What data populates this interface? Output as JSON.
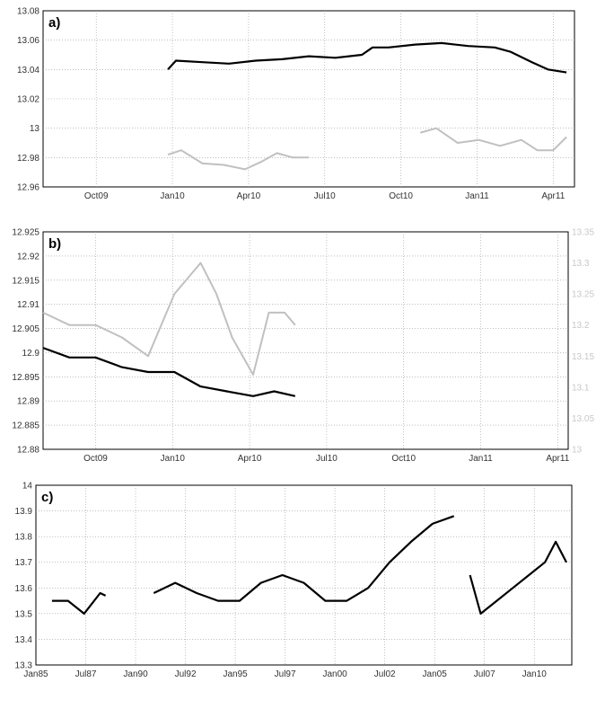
{
  "chart_data": [
    {
      "panel_label": "a)",
      "type": "line",
      "ylim": [
        12.96,
        13.08
      ],
      "y_ticks": [
        "12.96",
        "12.98",
        "13",
        "13.02",
        "13.04",
        "13.06",
        "13.08"
      ],
      "x_ticks": [
        "Oct09",
        "Jan10",
        "Apr10",
        "Jul10",
        "Oct10",
        "Jan11",
        "Apr11"
      ],
      "grid": true,
      "series": [
        {
          "color": "#000000",
          "points": [
            [
              0.235,
              13.04
            ],
            [
              0.25,
              13.046
            ],
            [
              0.3,
              13.045
            ],
            [
              0.35,
              13.044
            ],
            [
              0.4,
              13.046
            ],
            [
              0.45,
              13.047
            ],
            [
              0.5,
              13.049
            ],
            [
              0.55,
              13.048
            ],
            [
              0.6,
              13.05
            ],
            [
              0.62,
              13.055
            ],
            [
              0.65,
              13.055
            ],
            [
              0.7,
              13.057
            ],
            [
              0.75,
              13.058
            ],
            [
              0.8,
              13.056
            ],
            [
              0.85,
              13.055
            ],
            [
              0.88,
              13.052
            ],
            [
              0.92,
              13.045
            ],
            [
              0.95,
              13.04
            ],
            [
              0.985,
              13.038
            ]
          ]
        },
        {
          "color": "#c0c0c0",
          "points": [
            [
              0.235,
              12.982
            ],
            [
              0.26,
              12.985
            ],
            [
              0.3,
              12.976
            ],
            [
              0.34,
              12.975
            ],
            [
              0.38,
              12.972
            ],
            [
              0.41,
              12.977
            ],
            [
              0.44,
              12.983
            ],
            [
              0.47,
              12.98
            ],
            [
              0.5,
              12.98
            ]
          ]
        },
        {
          "color": "#c0c0c0",
          "points": [
            [
              0.71,
              12.997
            ],
            [
              0.74,
              13.0
            ],
            [
              0.78,
              12.99
            ],
            [
              0.82,
              12.992
            ],
            [
              0.86,
              12.988
            ],
            [
              0.9,
              12.992
            ],
            [
              0.93,
              12.985
            ],
            [
              0.96,
              12.985
            ],
            [
              0.985,
              12.994
            ]
          ]
        }
      ]
    },
    {
      "panel_label": "b)",
      "type": "line",
      "ylim": [
        12.88,
        12.925
      ],
      "y_ticks": [
        "12.88",
        "12.885",
        "12.89",
        "12.895",
        "12.9",
        "12.905",
        "12.91",
        "12.915",
        "12.92",
        "12.925"
      ],
      "y2lim": [
        13.0,
        13.35
      ],
      "y2_ticks": [
        "13",
        "13.05",
        "13.1",
        "13.15",
        "13.2",
        "13.25",
        "13.3",
        "13.35"
      ],
      "x_ticks": [
        "Oct09",
        "Jan10",
        "Apr10",
        "Jul10",
        "Oct10",
        "Jan11",
        "Apr11"
      ],
      "grid": true,
      "series": [
        {
          "color": "#c0c0c0",
          "axis": "right",
          "points": [
            [
              0.0,
              13.22
            ],
            [
              0.05,
              13.2
            ],
            [
              0.1,
              13.2
            ],
            [
              0.15,
              13.18
            ],
            [
              0.2,
              13.15
            ],
            [
              0.25,
              13.25
            ],
            [
              0.3,
              13.3
            ],
            [
              0.33,
              13.25
            ],
            [
              0.36,
              13.18
            ],
            [
              0.4,
              13.12
            ],
            [
              0.43,
              13.22
            ],
            [
              0.46,
              13.22
            ],
            [
              0.48,
              13.2
            ]
          ]
        },
        {
          "color": "#000000",
          "axis": "left",
          "points": [
            [
              0.0,
              12.901
            ],
            [
              0.05,
              12.899
            ],
            [
              0.1,
              12.899
            ],
            [
              0.15,
              12.897
            ],
            [
              0.2,
              12.896
            ],
            [
              0.25,
              12.896
            ],
            [
              0.3,
              12.893
            ],
            [
              0.35,
              12.892
            ],
            [
              0.4,
              12.891
            ],
            [
              0.44,
              12.892
            ],
            [
              0.48,
              12.891
            ]
          ]
        }
      ]
    },
    {
      "panel_label": "c)",
      "type": "line",
      "ylim": [
        13.3,
        14.0
      ],
      "y_ticks": [
        "13.3",
        "13.4",
        "13.5",
        "13.6",
        "13.7",
        "13.8",
        "13.9",
        "14"
      ],
      "x_ticks": [
        "Jan85",
        "Jul87",
        "Jan90",
        "Jul92",
        "Jan95",
        "Jul97",
        "Jan00",
        "Jul02",
        "Jan05",
        "Jul07",
        "Jan10"
      ],
      "grid": true,
      "series": [
        {
          "color": "#000000",
          "points": [
            [
              0.03,
              13.55
            ],
            [
              0.06,
              13.55
            ],
            [
              0.09,
              13.5
            ],
            [
              0.12,
              13.58
            ],
            [
              0.13,
              13.57
            ],
            [
              null,
              null
            ],
            [
              0.22,
              13.58
            ],
            [
              0.26,
              13.62
            ],
            [
              0.3,
              13.58
            ],
            [
              0.34,
              13.55
            ],
            [
              0.38,
              13.55
            ],
            [
              0.42,
              13.62
            ],
            [
              0.46,
              13.65
            ],
            [
              0.5,
              13.62
            ],
            [
              0.54,
              13.55
            ],
            [
              0.58,
              13.55
            ],
            [
              0.62,
              13.6
            ],
            [
              0.66,
              13.7
            ],
            [
              0.7,
              13.78
            ],
            [
              0.74,
              13.85
            ],
            [
              0.78,
              13.88
            ],
            [
              null,
              null
            ],
            [
              0.81,
              13.65
            ],
            [
              0.83,
              13.5
            ],
            [
              0.86,
              13.55
            ],
            [
              0.89,
              13.6
            ],
            [
              0.92,
              13.65
            ],
            [
              0.95,
              13.7
            ],
            [
              0.97,
              13.78
            ],
            [
              0.99,
              13.7
            ]
          ]
        }
      ]
    }
  ]
}
